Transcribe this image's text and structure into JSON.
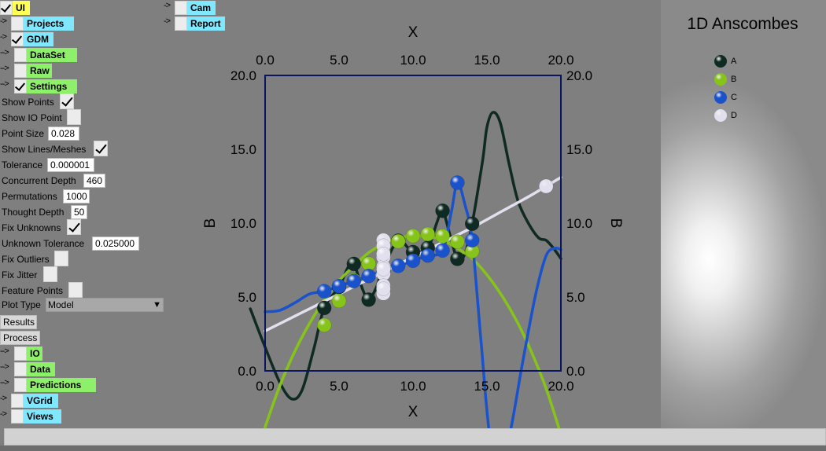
{
  "menu": {
    "ui_label": "UI",
    "projects_label": "Projects",
    "gdm_label": "GDM",
    "dataset_label": "DataSet",
    "raw_label": "Raw",
    "settings_label": "Settings",
    "results_label": "Results",
    "process_label": "Process",
    "io_label": "IO",
    "data_label": "Data",
    "predictions_label": "Predictions",
    "vgrid_label": "VGrid",
    "views_label": "Views",
    "cam_label": "Cam",
    "report_label": "Report",
    "arrow": "->",
    "arrow2": "-->"
  },
  "settings": {
    "show_points_label": "Show Points",
    "show_points": true,
    "show_io_point_label": "Show IO Point",
    "show_io_point": false,
    "point_size_label": "Point Size",
    "point_size": "0.028",
    "show_lines_label": "Show Lines/Meshes",
    "show_lines": true,
    "tolerance_label": "Tolerance",
    "tolerance": "0.000001",
    "concurrent_depth_label": "Concurrent Depth",
    "concurrent_depth": "460",
    "permutations_label": "Permutations",
    "permutations": "1000",
    "thought_depth_label": "Thought Depth",
    "thought_depth": "50",
    "fix_unknowns_label": "Fix Unknowns",
    "fix_unknowns": true,
    "unknown_tolerance_label": "Unknown Tolerance",
    "unknown_tolerance": "0.025000",
    "fix_outliers_label": "Fix Outliers",
    "fix_outliers": false,
    "fix_jitter_label": "Fix Jitter",
    "fix_jitter": false,
    "feature_points_label": "Feature Points",
    "feature_points": false,
    "plot_type_label": "Plot Type",
    "plot_type": "Model",
    "caret": "▼"
  },
  "chart_data": {
    "type": "scatter",
    "title": "1D Anscombes",
    "xlabel": "X",
    "ylabel": "B",
    "xlim": [
      0,
      20
    ],
    "ylim": [
      0,
      20
    ],
    "x_ticks": [
      "0.0",
      "5.0",
      "10.0",
      "15.0",
      "20.0"
    ],
    "y_ticks": [
      "0.0",
      "5.0",
      "10.0",
      "15.0",
      "20.0"
    ],
    "legend_position": "top-right",
    "grid": false,
    "series": [
      {
        "name": "A",
        "color": "#0f2a22",
        "points": [
          [
            10,
            8.04
          ],
          [
            8,
            6.95
          ],
          [
            13,
            7.58
          ],
          [
            9,
            8.81
          ],
          [
            11,
            8.33
          ],
          [
            14,
            9.96
          ],
          [
            6,
            7.24
          ],
          [
            4,
            4.26
          ],
          [
            12,
            10.84
          ],
          [
            7,
            4.82
          ],
          [
            5,
            5.68
          ]
        ],
        "curve": [
          [
            -1,
            4.2
          ],
          [
            0,
            1.6
          ],
          [
            1,
            -0.8
          ],
          [
            1.8,
            -1.9
          ],
          [
            2.5,
            -1.3
          ],
          [
            3.3,
            1.5
          ],
          [
            4,
            4.26
          ],
          [
            5,
            5.68
          ],
          [
            5.6,
            7.0
          ],
          [
            6,
            7.24
          ],
          [
            6.6,
            5.5
          ],
          [
            7,
            4.82
          ],
          [
            7.5,
            5.6
          ],
          [
            8,
            6.95
          ],
          [
            9,
            8.81
          ],
          [
            10,
            8.04
          ],
          [
            11,
            8.33
          ],
          [
            11.6,
            10.0
          ],
          [
            12,
            10.84
          ],
          [
            12.5,
            9.2
          ],
          [
            13,
            7.58
          ],
          [
            13.5,
            7.9
          ],
          [
            14,
            9.96
          ],
          [
            14.7,
            14.2
          ],
          [
            15.0,
            16.5
          ],
          [
            15.4,
            17.5
          ],
          [
            15.9,
            16.8
          ],
          [
            16.5,
            14.0
          ],
          [
            17.1,
            11.5
          ],
          [
            17.8,
            10.0
          ],
          [
            18.5,
            9.0
          ],
          [
            19,
            8.84
          ],
          [
            19.5,
            8.3
          ],
          [
            20,
            7.6
          ]
        ]
      },
      {
        "name": "B",
        "color": "#86c41a",
        "points": [
          [
            10,
            9.14
          ],
          [
            8,
            8.14
          ],
          [
            13,
            8.74
          ],
          [
            9,
            8.77
          ],
          [
            11,
            9.26
          ],
          [
            14,
            8.1
          ],
          [
            6,
            6.13
          ],
          [
            4,
            3.1
          ],
          [
            12,
            9.13
          ],
          [
            7,
            7.26
          ],
          [
            5,
            4.74
          ]
        ],
        "curve": [
          [
            0,
            -3.8
          ],
          [
            1,
            -1.0
          ],
          [
            2,
            1.3
          ],
          [
            3,
            3.2
          ],
          [
            4,
            4.8
          ],
          [
            5,
            6.1
          ],
          [
            6,
            7.1
          ],
          [
            7,
            8.0
          ],
          [
            8,
            8.6
          ],
          [
            9,
            9.0
          ],
          [
            10,
            9.14
          ],
          [
            11,
            9.1
          ],
          [
            12,
            8.85
          ],
          [
            13,
            8.3
          ],
          [
            14,
            7.6
          ],
          [
            15,
            6.5
          ],
          [
            16,
            5.1
          ],
          [
            17,
            3.4
          ],
          [
            18,
            1.3
          ],
          [
            19,
            -1.2
          ],
          [
            20,
            -4.3
          ]
        ]
      },
      {
        "name": "C",
        "color": "#1a52cc",
        "points": [
          [
            10,
            7.46
          ],
          [
            8,
            6.77
          ],
          [
            13,
            12.74
          ],
          [
            9,
            7.11
          ],
          [
            11,
            7.81
          ],
          [
            14,
            8.84
          ],
          [
            6,
            6.08
          ],
          [
            4,
            5.39
          ],
          [
            12,
            8.15
          ],
          [
            7,
            6.42
          ],
          [
            5,
            5.73
          ]
        ],
        "curve": [
          [
            0,
            4.0
          ],
          [
            1,
            4.1
          ],
          [
            2,
            4.6
          ],
          [
            3,
            5.2
          ],
          [
            4,
            5.39
          ],
          [
            5,
            5.73
          ],
          [
            6,
            6.08
          ],
          [
            7,
            6.42
          ],
          [
            8,
            6.77
          ],
          [
            9,
            7.11
          ],
          [
            10,
            7.46
          ],
          [
            11,
            7.81
          ],
          [
            12,
            8.15
          ],
          [
            12.6,
            10.8
          ],
          [
            13,
            12.74
          ],
          [
            13.5,
            11.3
          ],
          [
            14,
            8.84
          ],
          [
            14.6,
            2.0
          ],
          [
            15.2,
            -4.5
          ],
          [
            15.9,
            -6.5
          ],
          [
            16.6,
            -4.0
          ],
          [
            17.4,
            0.5
          ],
          [
            18.3,
            5.2
          ],
          [
            19,
            7.8
          ],
          [
            19.6,
            8.3
          ],
          [
            20,
            8.2
          ]
        ]
      },
      {
        "name": "D",
        "color": "#e2e0ee",
        "points": [
          [
            8,
            6.58
          ],
          [
            8,
            5.76
          ],
          [
            8,
            7.71
          ],
          [
            8,
            8.84
          ],
          [
            8,
            8.47
          ],
          [
            8,
            7.04
          ],
          [
            8,
            5.25
          ],
          [
            19,
            12.5
          ],
          [
            8,
            5.56
          ],
          [
            8,
            7.91
          ],
          [
            8,
            6.89
          ]
        ],
        "curve": [
          [
            0,
            2.7
          ],
          [
            2,
            3.7
          ],
          [
            4,
            4.7
          ],
          [
            6,
            5.7
          ],
          [
            8,
            6.7
          ],
          [
            10,
            7.7
          ],
          [
            12,
            8.7
          ],
          [
            14,
            9.7
          ],
          [
            16,
            10.8
          ],
          [
            18,
            11.9
          ],
          [
            20,
            13.1
          ]
        ]
      }
    ]
  }
}
